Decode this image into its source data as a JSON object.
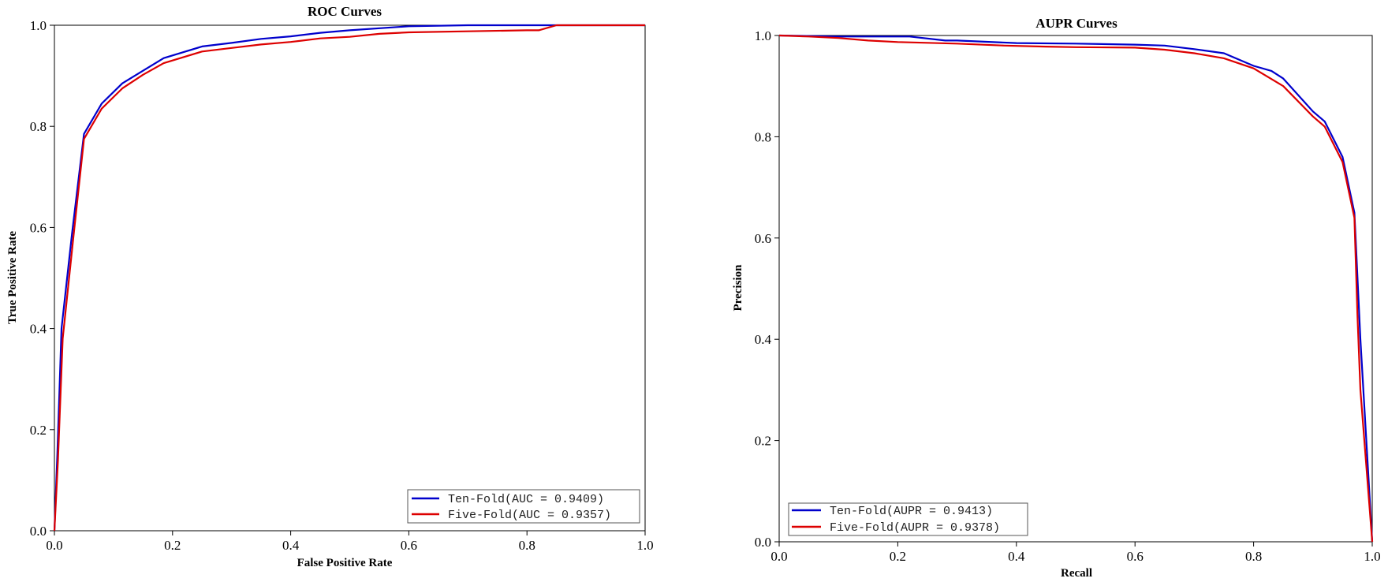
{
  "chart_data": [
    {
      "type": "line",
      "title": "ROC Curves",
      "xlabel": "False Positive Rate",
      "ylabel": "True Positive Rate",
      "xlim": [
        0,
        1
      ],
      "ylim": [
        0,
        1
      ],
      "xticks": [
        "0.0",
        "0.2",
        "0.4",
        "0.6",
        "0.8",
        "1.0"
      ],
      "yticks": [
        "0.0",
        "0.2",
        "0.4",
        "0.6",
        "0.8",
        "1.0"
      ],
      "grid": false,
      "legend_position": "bottom-right",
      "series": [
        {
          "name": "Ten-Fold(AUC = 0.9409)",
          "color": "#0000cc",
          "points": [
            [
              0,
              0
            ],
            [
              0.005,
              0.15
            ],
            [
              0.012,
              0.4
            ],
            [
              0.03,
              0.59
            ],
            [
              0.05,
              0.785
            ],
            [
              0.08,
              0.845
            ],
            [
              0.115,
              0.885
            ],
            [
              0.15,
              0.91
            ],
            [
              0.185,
              0.935
            ],
            [
              0.25,
              0.958
            ],
            [
              0.3,
              0.965
            ],
            [
              0.35,
              0.973
            ],
            [
              0.4,
              0.978
            ],
            [
              0.45,
              0.985
            ],
            [
              0.5,
              0.99
            ],
            [
              0.6,
              0.998
            ],
            [
              0.7,
              1.0
            ],
            [
              0.85,
              1.0
            ],
            [
              1.0,
              1.0
            ]
          ]
        },
        {
          "name": "Five-Fold(AUC = 0.9357)",
          "color": "#dd0000",
          "points": [
            [
              0,
              0
            ],
            [
              0.006,
              0.14
            ],
            [
              0.014,
              0.38
            ],
            [
              0.032,
              0.58
            ],
            [
              0.05,
              0.775
            ],
            [
              0.08,
              0.835
            ],
            [
              0.115,
              0.875
            ],
            [
              0.15,
              0.902
            ],
            [
              0.185,
              0.925
            ],
            [
              0.25,
              0.948
            ],
            [
              0.3,
              0.955
            ],
            [
              0.35,
              0.962
            ],
            [
              0.4,
              0.967
            ],
            [
              0.45,
              0.974
            ],
            [
              0.5,
              0.977
            ],
            [
              0.55,
              0.983
            ],
            [
              0.6,
              0.986
            ],
            [
              0.7,
              0.988
            ],
            [
              0.8,
              0.99
            ],
            [
              0.82,
              0.99
            ],
            [
              0.85,
              1.0
            ],
            [
              1.0,
              1.0
            ]
          ]
        }
      ]
    },
    {
      "type": "line",
      "title": "AUPR Curves",
      "xlabel": "Recall",
      "ylabel": "Precision",
      "xlim": [
        0,
        1
      ],
      "ylim": [
        0,
        1
      ],
      "xticks": [
        "0.0",
        "0.2",
        "0.4",
        "0.6",
        "0.8",
        "1.0"
      ],
      "yticks": [
        "0.0",
        "0.2",
        "0.4",
        "0.6",
        "0.8",
        "1.0"
      ],
      "grid": false,
      "legend_position": "bottom-left",
      "series": [
        {
          "name": "Ten-Fold(AUPR = 0.9413)",
          "color": "#0000cc",
          "points": [
            [
              0,
              1.0
            ],
            [
              0.1,
              0.998
            ],
            [
              0.2,
              0.998
            ],
            [
              0.22,
              0.998
            ],
            [
              0.28,
              0.99
            ],
            [
              0.3,
              0.99
            ],
            [
              0.4,
              0.985
            ],
            [
              0.5,
              0.984
            ],
            [
              0.6,
              0.982
            ],
            [
              0.65,
              0.98
            ],
            [
              0.7,
              0.973
            ],
            [
              0.75,
              0.965
            ],
            [
              0.8,
              0.94
            ],
            [
              0.83,
              0.93
            ],
            [
              0.85,
              0.915
            ],
            [
              0.9,
              0.85
            ],
            [
              0.92,
              0.83
            ],
            [
              0.95,
              0.76
            ],
            [
              0.97,
              0.65
            ],
            [
              0.98,
              0.4
            ],
            [
              0.99,
              0.2
            ],
            [
              1.0,
              0.0
            ]
          ]
        },
        {
          "name": "Five-Fold(AUPR = 0.9378)",
          "color": "#dd0000",
          "points": [
            [
              0,
              1.0
            ],
            [
              0.05,
              0.998
            ],
            [
              0.1,
              0.995
            ],
            [
              0.15,
              0.99
            ],
            [
              0.2,
              0.987
            ],
            [
              0.3,
              0.984
            ],
            [
              0.38,
              0.98
            ],
            [
              0.45,
              0.978
            ],
            [
              0.5,
              0.977
            ],
            [
              0.6,
              0.976
            ],
            [
              0.65,
              0.972
            ],
            [
              0.7,
              0.965
            ],
            [
              0.75,
              0.955
            ],
            [
              0.8,
              0.935
            ],
            [
              0.85,
              0.9
            ],
            [
              0.9,
              0.84
            ],
            [
              0.92,
              0.82
            ],
            [
              0.95,
              0.75
            ],
            [
              0.97,
              0.64
            ],
            [
              0.975,
              0.45
            ],
            [
              0.98,
              0.3
            ],
            [
              0.99,
              0.15
            ],
            [
              1.0,
              0.0
            ]
          ]
        }
      ]
    }
  ]
}
